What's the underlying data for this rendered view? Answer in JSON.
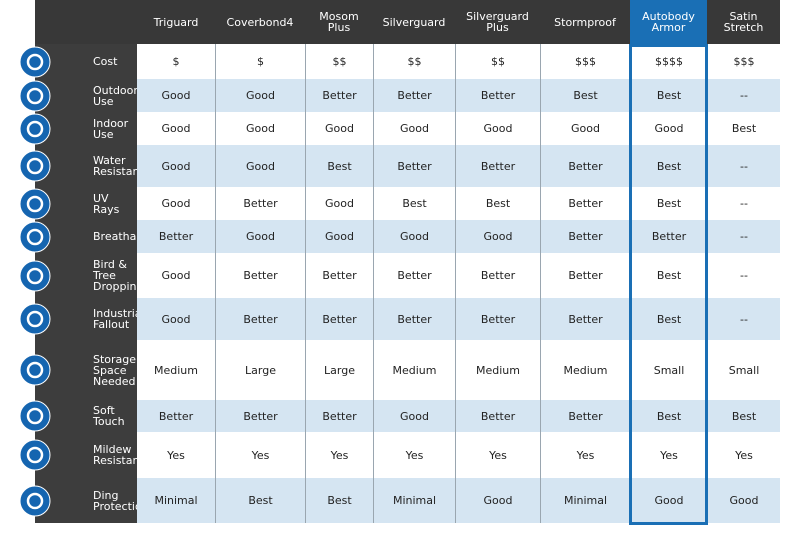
{
  "columns": [
    "Triguard",
    "Coverbond4",
    "Mosom\nPlus",
    "Silverguard",
    "Silverguard\nPlus",
    "Stormproof",
    "Autobody\nArmor",
    "Satin\nStretch"
  ],
  "rows": [
    {
      "label": "Cost",
      "values": [
        "$",
        "$",
        "$$",
        "$$",
        "$$",
        "$$$",
        "$$$$",
        "$$$"
      ]
    },
    {
      "label": "Outdoor Use",
      "values": [
        "Good",
        "Good",
        "Better",
        "Better",
        "Better",
        "Best",
        "Best",
        "--"
      ]
    },
    {
      "label": "Indoor Use",
      "values": [
        "Good",
        "Good",
        "Good",
        "Good",
        "Good",
        "Good",
        "Good",
        "Best"
      ]
    },
    {
      "label": "Water\nResistance",
      "values": [
        "Good",
        "Good",
        "Best",
        "Better",
        "Better",
        "Better",
        "Best",
        "--"
      ]
    },
    {
      "label": "UV Rays",
      "values": [
        "Good",
        "Better",
        "Good",
        "Best",
        "Best",
        "Better",
        "Best",
        "--"
      ]
    },
    {
      "label": "Breathability",
      "values": [
        "Better",
        "Good",
        "Good",
        "Good",
        "Good",
        "Better",
        "Better",
        "--"
      ]
    },
    {
      "label": "Bird & Tree\nDroppings",
      "values": [
        "Good",
        "Better",
        "Better",
        "Better",
        "Better",
        "Better",
        "Best",
        "--"
      ]
    },
    {
      "label": "Industrial\nFallout",
      "values": [
        "Good",
        "Better",
        "Better",
        "Better",
        "Better",
        "Better",
        "Best",
        "--"
      ]
    },
    {
      "label": "Storage\nSpace\nNeeded",
      "values": [
        "Medium",
        "Large",
        "Large",
        "Medium",
        "Medium",
        "Medium",
        "Small",
        "Small"
      ]
    },
    {
      "label": "Soft Touch",
      "values": [
        "Better",
        "Better",
        "Better",
        "Good",
        "Better",
        "Better",
        "Best",
        "Best"
      ]
    },
    {
      "label": "Mildew\nResistant",
      "values": [
        "Yes",
        "Yes",
        "Yes",
        "Yes",
        "Yes",
        "Yes",
        "Yes",
        "Yes"
      ]
    },
    {
      "label": "Ding\nProtection",
      "values": [
        "Minimal",
        "Best",
        "Best",
        "Minimal",
        "Good",
        "Minimal",
        "Good",
        "Good"
      ]
    }
  ]
}
